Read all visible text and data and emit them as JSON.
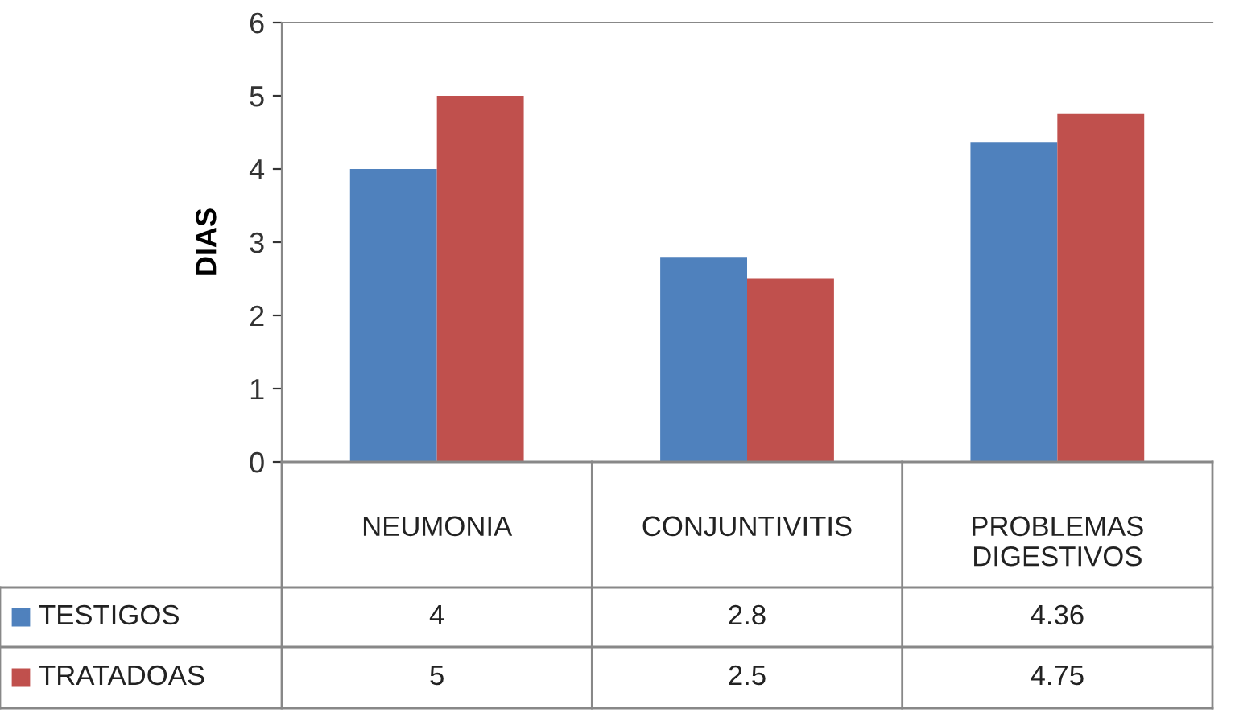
{
  "chart_data": {
    "type": "bar",
    "ylabel": "DIAS",
    "categories": [
      "NEUMONIA",
      "CONJUNTIVITIS",
      "PROBLEMAS DIGESTIVOS"
    ],
    "series": [
      {
        "name": "TESTIGOS",
        "color": "#4f81bd",
        "values": [
          4,
          2.8,
          4.36
        ]
      },
      {
        "name": "TRATADOAS",
        "color": "#c0504d",
        "values": [
          5,
          2.5,
          4.75
        ]
      }
    ],
    "ylim": [
      0,
      6
    ],
    "yticks": [
      0,
      1,
      2,
      3,
      4,
      5,
      6
    ],
    "grid": false,
    "legend": "bottom",
    "data_labels": true
  }
}
